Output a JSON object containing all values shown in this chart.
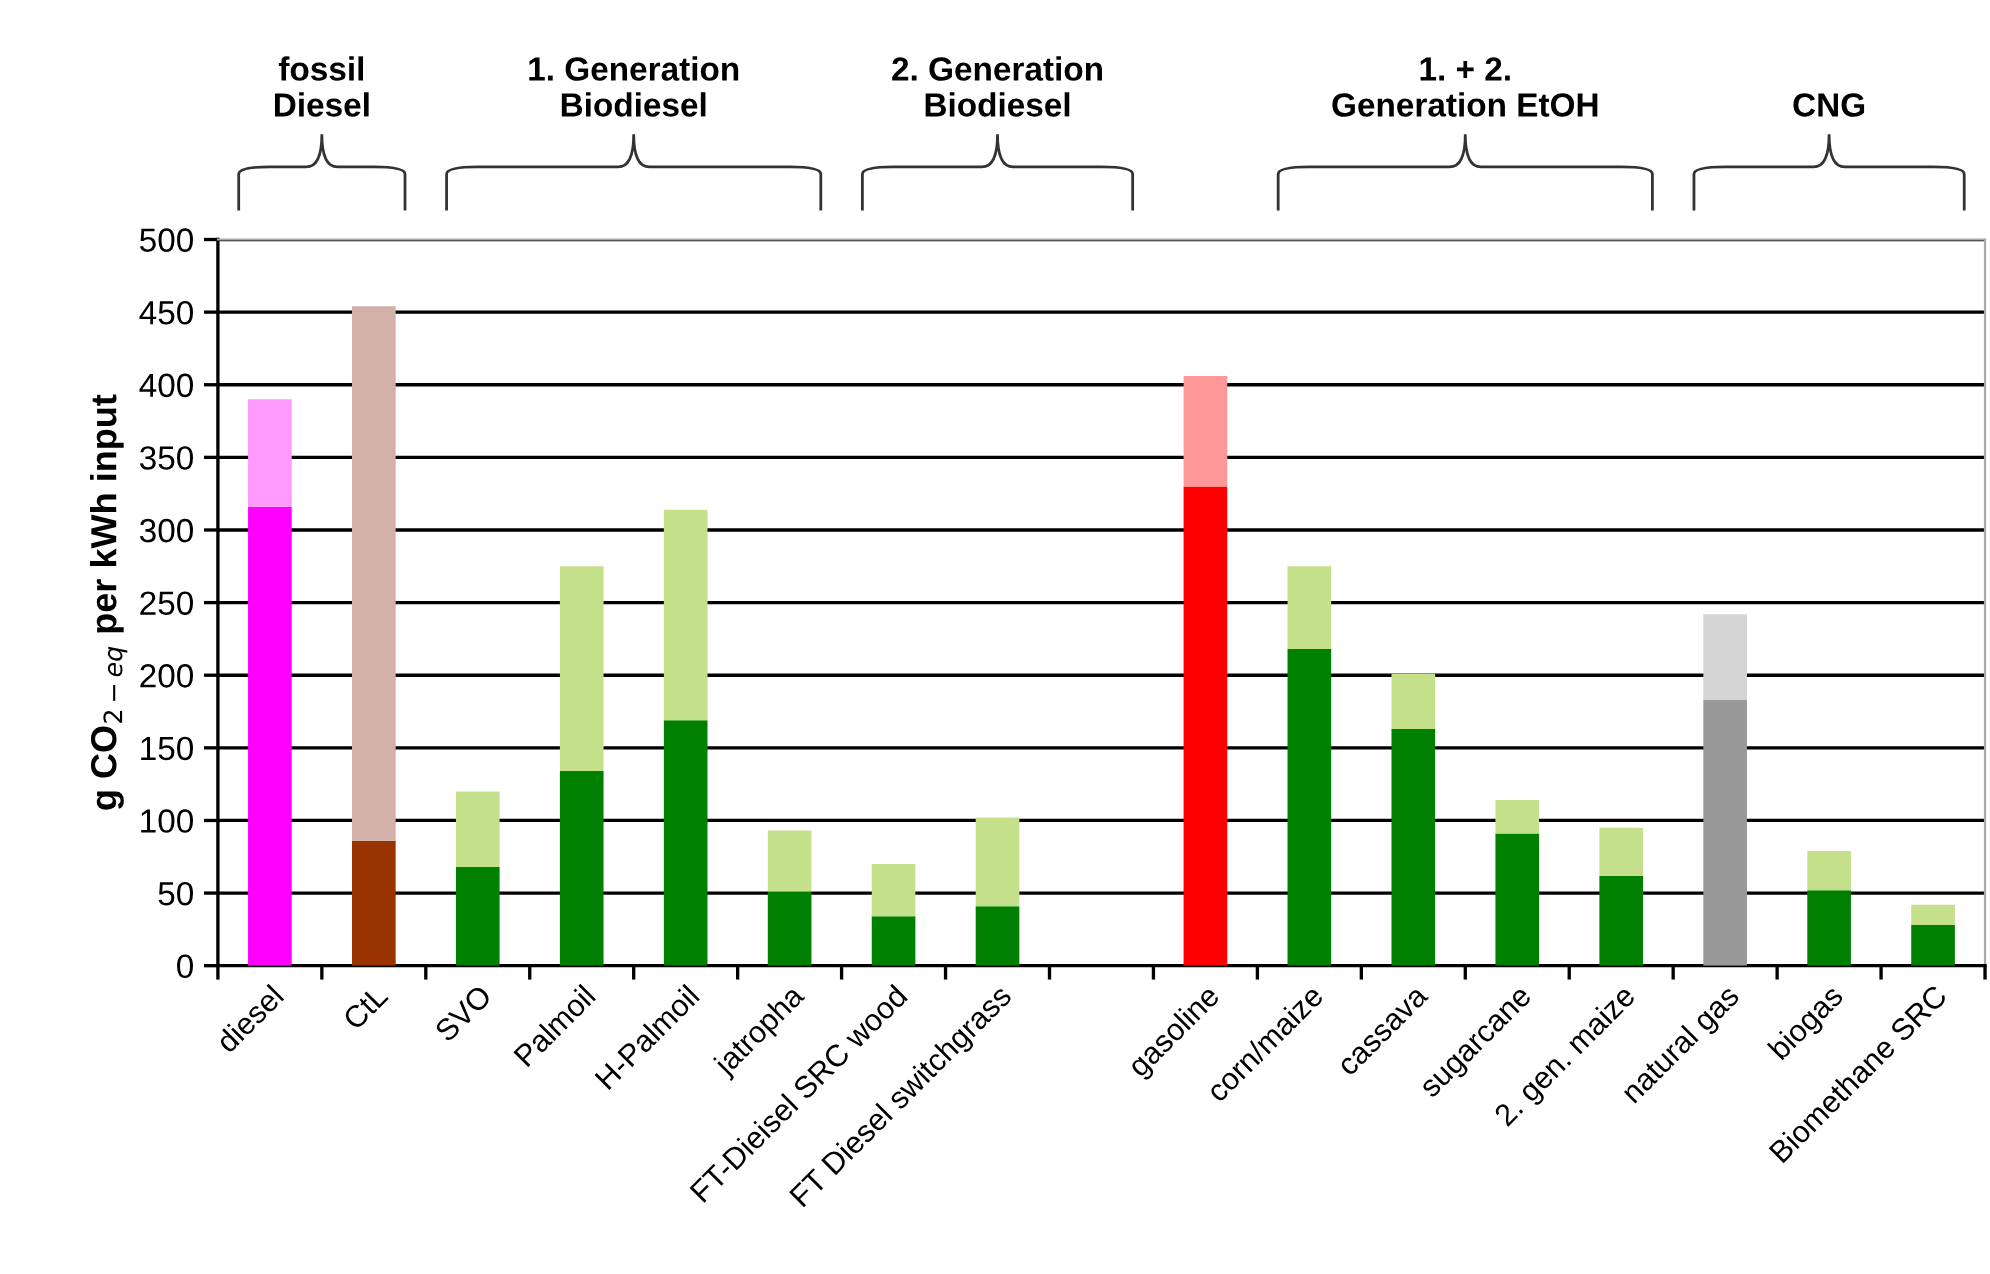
{
  "chart_data": {
    "type": "bar",
    "stacked": true,
    "ylabel": "g CO$_{2−eq}$ per kWh input",
    "categories": [
      "diesel",
      "CtL",
      "SVO",
      "Palmoil",
      "H-Palmoil",
      "jatropha",
      "FT-Dieisel SRC wood",
      "FT Diesel switchgrass",
      null,
      "gasoline",
      "corn/maize",
      "cassava",
      "sugarcane",
      "2. gen. maize",
      "natural gas",
      "biogas",
      "Biomethane SRC"
    ],
    "series": [
      {
        "colors": [
          "#ff00ff",
          "#993300",
          "#008000",
          "#008000",
          "#008000",
          "#008000",
          "#008000",
          "#008000",
          null,
          "#ff0000",
          "#008000",
          "#008000",
          "#008000",
          "#008000",
          "#999999",
          "#008000",
          "#008000"
        ],
        "values": [
          316,
          86,
          68,
          134,
          169,
          51,
          34,
          41,
          null,
          330,
          218,
          163,
          91,
          62,
          183,
          52,
          28
        ]
      },
      {
        "colors": [
          "#ff99ff",
          "#d2b0a8",
          "#c5e08a",
          "#c5e08a",
          "#c5e08a",
          "#c5e08a",
          "#c5e08a",
          "#c5e08a",
          null,
          "#ff9999",
          "#c5e08a",
          "#c5e08a",
          "#c5e08a",
          "#c5e08a",
          "#d4d4d4",
          "#c5e08a",
          "#c5e08a"
        ],
        "values": [
          74,
          368,
          52,
          141,
          145,
          42,
          36,
          61,
          null,
          76,
          57,
          38,
          23,
          33,
          59,
          27,
          14
        ]
      }
    ],
    "ylim": [
      0,
      500
    ],
    "yticks": [
      0,
      50,
      100,
      150,
      200,
      250,
      300,
      350,
      400,
      450,
      500
    ],
    "grid": "y",
    "annotations": [
      "fossil\nDiesel",
      "1. Generation\nBiodiesel",
      "2. Generation\nBiodiesel",
      "1. + 2.\nGeneration EtOH",
      "CNG"
    ]
  }
}
